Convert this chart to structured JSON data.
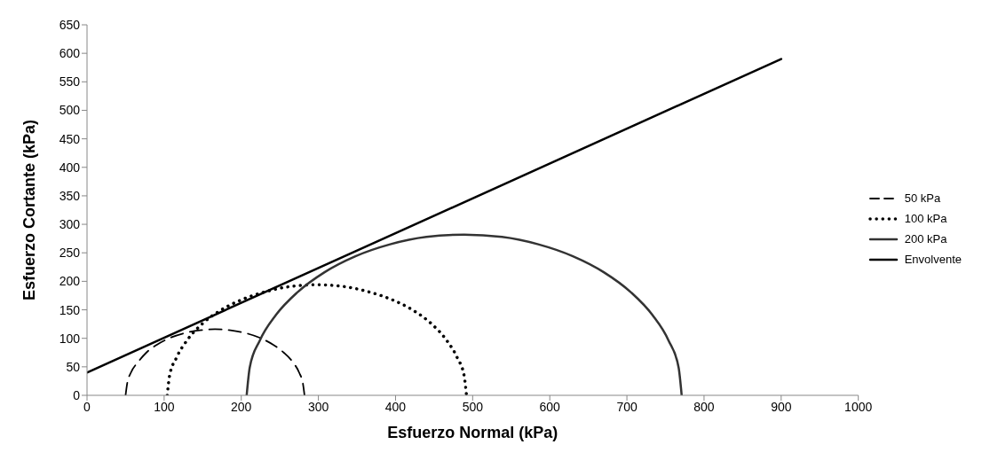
{
  "chart_data": {
    "type": "line",
    "xlabel": "Esfuerzo Normal  (kPa)",
    "ylabel": "Esfuerzo Cortante  (kPa)",
    "xlim": [
      0,
      1000
    ],
    "xticks": [
      0,
      100,
      200,
      300,
      400,
      500,
      600,
      700,
      800,
      900,
      1000
    ],
    "ylim": [
      0,
      650
    ],
    "yticks": [
      0,
      50,
      100,
      150,
      200,
      250,
      300,
      350,
      400,
      450,
      500,
      550,
      600,
      650
    ],
    "grid": false,
    "legend": "right",
    "marker": "none",
    "series": [
      {
        "name": "50  kPa",
        "color": "#000000",
        "line_style": "dashed",
        "x": [
          50,
          52,
          57,
          66,
          77,
          91,
          108,
          126,
          146,
          166,
          186,
          206,
          224,
          241,
          255,
          267,
          275,
          280,
          282
        ],
        "values": [
          0,
          20,
          40,
          58,
          75,
          89,
          101,
          109,
          114,
          116,
          114,
          109,
          101,
          89,
          75,
          58,
          40,
          20,
          0
        ]
      },
      {
        "name": "100 kPa",
        "color": "#000000",
        "line_style": "dotted",
        "x": [
          104,
          107,
          116,
          130,
          149,
          173,
          201,
          232,
          264,
          298,
          332,
          364,
          395,
          423,
          447,
          466,
          480,
          489,
          492
        ],
        "values": [
          0,
          34,
          66,
          97,
          125,
          149,
          168,
          182,
          191,
          194,
          191,
          182,
          168,
          149,
          125,
          97,
          66,
          34,
          0
        ]
      },
      {
        "name": "200 kPa",
        "color": "#333333",
        "line_style": "solid",
        "x": [
          207,
          211,
          224,
          245,
          273,
          308,
          348,
          393,
          440,
          489,
          538,
          585,
          630,
          670,
          705,
          733,
          754,
          767,
          771
        ],
        "values": [
          0,
          49,
          96,
          141,
          181,
          216,
          244,
          265,
          278,
          282,
          278,
          265,
          244,
          216,
          181,
          141,
          96,
          49,
          0
        ]
      },
      {
        "name": "Envolvente",
        "color": "#000000",
        "line_style": "solid",
        "x": [
          0,
          900
        ],
        "values": [
          40,
          590
        ]
      }
    ]
  }
}
